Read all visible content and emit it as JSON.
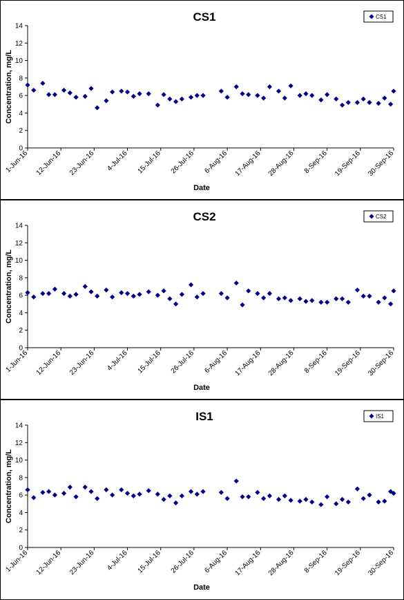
{
  "chart_data": [
    {
      "type": "scatter",
      "title": "CS1",
      "xlabel": "Date",
      "ylabel": "Concentration, mg/L",
      "ylim": [
        0,
        14
      ],
      "yticks": [
        0,
        2,
        4,
        6,
        8,
        10,
        12,
        14
      ],
      "xlim": [
        "2016-06-01",
        "2016-09-30"
      ],
      "xtick_labels": [
        "1-Jun-16",
        "12-Jun-16",
        "23-Jun-16",
        "4-Jul-16",
        "15-Jul-16",
        "26-Jul-16",
        "6-Aug-16",
        "17-Aug-16",
        "28-Aug-16",
        "8-Sep-16",
        "19-Sep-16",
        "30-Sep-16"
      ],
      "xtick_dates": [
        "2016-06-01",
        "2016-06-12",
        "2016-06-23",
        "2016-07-04",
        "2016-07-15",
        "2016-07-26",
        "2016-08-06",
        "2016-08-17",
        "2016-08-28",
        "2016-09-08",
        "2016-09-19",
        "2016-09-30"
      ],
      "legend": "top-right",
      "grid": false,
      "marker_color": "#00008B",
      "series": [
        {
          "name": "CS1",
          "points": [
            [
              "2016-06-01",
              7.2
            ],
            [
              "2016-06-03",
              6.6
            ],
            [
              "2016-06-06",
              7.4
            ],
            [
              "2016-06-08",
              6.1
            ],
            [
              "2016-06-10",
              6.1
            ],
            [
              "2016-06-13",
              6.6
            ],
            [
              "2016-06-15",
              6.3
            ],
            [
              "2016-06-17",
              5.8
            ],
            [
              "2016-06-20",
              5.9
            ],
            [
              "2016-06-22",
              6.8
            ],
            [
              "2016-06-24",
              4.6
            ],
            [
              "2016-06-27",
              5.4
            ],
            [
              "2016-06-29",
              6.4
            ],
            [
              "2016-07-02",
              6.5
            ],
            [
              "2016-07-04",
              6.4
            ],
            [
              "2016-07-06",
              5.9
            ],
            [
              "2016-07-08",
              6.2
            ],
            [
              "2016-07-11",
              6.2
            ],
            [
              "2016-07-14",
              4.9
            ],
            [
              "2016-07-16",
              6.1
            ],
            [
              "2016-07-18",
              5.6
            ],
            [
              "2016-07-20",
              5.3
            ],
            [
              "2016-07-22",
              5.6
            ],
            [
              "2016-07-25",
              5.8
            ],
            [
              "2016-07-27",
              6.0
            ],
            [
              "2016-07-29",
              6.0
            ],
            [
              "2016-08-04",
              6.5
            ],
            [
              "2016-08-06",
              5.8
            ],
            [
              "2016-08-09",
              7.0
            ],
            [
              "2016-08-11",
              6.2
            ],
            [
              "2016-08-13",
              6.1
            ],
            [
              "2016-08-16",
              6.0
            ],
            [
              "2016-08-18",
              5.7
            ],
            [
              "2016-08-20",
              7.0
            ],
            [
              "2016-08-23",
              6.5
            ],
            [
              "2016-08-25",
              5.7
            ],
            [
              "2016-08-27",
              7.1
            ],
            [
              "2016-08-30",
              6.0
            ],
            [
              "2016-09-01",
              6.2
            ],
            [
              "2016-09-03",
              6.0
            ],
            [
              "2016-09-06",
              5.5
            ],
            [
              "2016-09-08",
              6.1
            ],
            [
              "2016-09-11",
              5.6
            ],
            [
              "2016-09-13",
              4.9
            ],
            [
              "2016-09-15",
              5.2
            ],
            [
              "2016-09-18",
              5.2
            ],
            [
              "2016-09-20",
              5.6
            ],
            [
              "2016-09-22",
              5.2
            ],
            [
              "2016-09-25",
              5.1
            ],
            [
              "2016-09-27",
              5.7
            ],
            [
              "2016-09-29",
              5.0
            ],
            [
              "2016-09-30",
              6.5
            ]
          ]
        }
      ]
    },
    {
      "type": "scatter",
      "title": "CS2",
      "xlabel": "Date",
      "ylabel": "Concentration, mg/L",
      "ylim": [
        0,
        14
      ],
      "yticks": [
        0,
        2,
        4,
        6,
        8,
        10,
        12,
        14
      ],
      "xlim": [
        "2016-06-01",
        "2016-09-30"
      ],
      "xtick_labels": [
        "1-Jun-16",
        "12-Jun-16",
        "23-Jun-16",
        "4-Jul-16",
        "15-Jul-16",
        "26-Jul-16",
        "6-Aug-16",
        "17-Aug-16",
        "28-Aug-16",
        "8-Sep-16",
        "19-Sep-16",
        "30-Sep-16"
      ],
      "xtick_dates": [
        "2016-06-01",
        "2016-06-12",
        "2016-06-23",
        "2016-07-04",
        "2016-07-15",
        "2016-07-26",
        "2016-08-06",
        "2016-08-17",
        "2016-08-28",
        "2016-09-08",
        "2016-09-19",
        "2016-09-30"
      ],
      "legend": "top-right",
      "grid": false,
      "marker_color": "#00008B",
      "series": [
        {
          "name": "CS2",
          "points": [
            [
              "2016-06-01",
              6.3
            ],
            [
              "2016-06-03",
              5.8
            ],
            [
              "2016-06-06",
              6.2
            ],
            [
              "2016-06-08",
              6.2
            ],
            [
              "2016-06-10",
              6.7
            ],
            [
              "2016-06-13",
              6.2
            ],
            [
              "2016-06-15",
              5.9
            ],
            [
              "2016-06-17",
              6.1
            ],
            [
              "2016-06-20",
              7.0
            ],
            [
              "2016-06-22",
              6.4
            ],
            [
              "2016-06-24",
              5.9
            ],
            [
              "2016-06-27",
              6.6
            ],
            [
              "2016-06-29",
              5.8
            ],
            [
              "2016-07-02",
              6.3
            ],
            [
              "2016-07-04",
              6.2
            ],
            [
              "2016-07-06",
              5.9
            ],
            [
              "2016-07-08",
              6.1
            ],
            [
              "2016-07-11",
              6.4
            ],
            [
              "2016-07-14",
              6.0
            ],
            [
              "2016-07-16",
              6.5
            ],
            [
              "2016-07-18",
              5.6
            ],
            [
              "2016-07-20",
              5.0
            ],
            [
              "2016-07-22",
              6.1
            ],
            [
              "2016-07-25",
              7.2
            ],
            [
              "2016-07-27",
              5.8
            ],
            [
              "2016-07-29",
              6.2
            ],
            [
              "2016-08-04",
              6.2
            ],
            [
              "2016-08-06",
              5.7
            ],
            [
              "2016-08-09",
              7.4
            ],
            [
              "2016-08-11",
              4.9
            ],
            [
              "2016-08-13",
              6.5
            ],
            [
              "2016-08-16",
              6.2
            ],
            [
              "2016-08-18",
              5.7
            ],
            [
              "2016-08-20",
              6.2
            ],
            [
              "2016-08-23",
              5.6
            ],
            [
              "2016-08-25",
              5.7
            ],
            [
              "2016-08-27",
              5.4
            ],
            [
              "2016-08-30",
              5.6
            ],
            [
              "2016-09-01",
              5.3
            ],
            [
              "2016-09-03",
              5.4
            ],
            [
              "2016-09-06",
              5.2
            ],
            [
              "2016-09-08",
              5.2
            ],
            [
              "2016-09-11",
              5.6
            ],
            [
              "2016-09-13",
              5.6
            ],
            [
              "2016-09-15",
              5.2
            ],
            [
              "2016-09-18",
              6.6
            ],
            [
              "2016-09-20",
              5.9
            ],
            [
              "2016-09-22",
              5.9
            ],
            [
              "2016-09-25",
              5.2
            ],
            [
              "2016-09-27",
              5.7
            ],
            [
              "2016-09-29",
              5.0
            ],
            [
              "2016-09-30",
              6.5
            ]
          ]
        }
      ]
    },
    {
      "type": "scatter",
      "title": "IS1",
      "xlabel": "Date",
      "ylabel": "Concentration, mg/L",
      "ylim": [
        0,
        14
      ],
      "yticks": [
        0,
        2,
        4,
        6,
        8,
        10,
        12,
        14
      ],
      "xlim": [
        "2016-06-01",
        "2016-09-30"
      ],
      "xtick_labels": [
        "1-Jun-16",
        "12-Jun-16",
        "23-Jun-16",
        "4-Jul-16",
        "15-Jul-16",
        "26-Jul-16",
        "6-Aug-16",
        "17-Aug-16",
        "28-Aug-16",
        "8-Sep-16",
        "19-Sep-16",
        "30-Sep-16"
      ],
      "xtick_dates": [
        "2016-06-01",
        "2016-06-12",
        "2016-06-23",
        "2016-07-04",
        "2016-07-15",
        "2016-07-26",
        "2016-08-06",
        "2016-08-17",
        "2016-08-28",
        "2016-09-08",
        "2016-09-19",
        "2016-09-30"
      ],
      "legend": "top-right",
      "grid": false,
      "marker_color": "#00008B",
      "series": [
        {
          "name": "IS1",
          "points": [
            [
              "2016-06-01",
              6.6
            ],
            [
              "2016-06-03",
              5.7
            ],
            [
              "2016-06-06",
              6.3
            ],
            [
              "2016-06-08",
              6.4
            ],
            [
              "2016-06-10",
              6.0
            ],
            [
              "2016-06-13",
              6.2
            ],
            [
              "2016-06-15",
              6.9
            ],
            [
              "2016-06-17",
              5.8
            ],
            [
              "2016-06-20",
              6.9
            ],
            [
              "2016-06-22",
              6.4
            ],
            [
              "2016-06-24",
              5.6
            ],
            [
              "2016-06-27",
              6.6
            ],
            [
              "2016-06-29",
              6.0
            ],
            [
              "2016-07-02",
              6.6
            ],
            [
              "2016-07-04",
              6.2
            ],
            [
              "2016-07-06",
              5.9
            ],
            [
              "2016-07-08",
              6.1
            ],
            [
              "2016-07-11",
              6.5
            ],
            [
              "2016-07-14",
              6.1
            ],
            [
              "2016-07-16",
              5.5
            ],
            [
              "2016-07-18",
              5.9
            ],
            [
              "2016-07-20",
              5.1
            ],
            [
              "2016-07-22",
              5.9
            ],
            [
              "2016-07-25",
              6.4
            ],
            [
              "2016-07-27",
              6.1
            ],
            [
              "2016-07-29",
              6.4
            ],
            [
              "2016-08-04",
              6.3
            ],
            [
              "2016-08-06",
              5.6
            ],
            [
              "2016-08-09",
              7.6
            ],
            [
              "2016-08-11",
              5.8
            ],
            [
              "2016-08-13",
              5.8
            ],
            [
              "2016-08-16",
              6.3
            ],
            [
              "2016-08-18",
              5.6
            ],
            [
              "2016-08-20",
              5.9
            ],
            [
              "2016-08-23",
              5.5
            ],
            [
              "2016-08-25",
              5.9
            ],
            [
              "2016-08-27",
              5.4
            ],
            [
              "2016-08-30",
              5.3
            ],
            [
              "2016-09-01",
              5.5
            ],
            [
              "2016-09-03",
              5.2
            ],
            [
              "2016-09-06",
              4.9
            ],
            [
              "2016-09-08",
              5.8
            ],
            [
              "2016-09-11",
              5.0
            ],
            [
              "2016-09-13",
              5.5
            ],
            [
              "2016-09-15",
              5.2
            ],
            [
              "2016-09-18",
              6.7
            ],
            [
              "2016-09-20",
              5.6
            ],
            [
              "2016-09-22",
              6.0
            ],
            [
              "2016-09-25",
              5.2
            ],
            [
              "2016-09-27",
              5.3
            ],
            [
              "2016-09-29",
              6.4
            ],
            [
              "2016-09-30",
              6.2
            ]
          ]
        }
      ]
    }
  ]
}
